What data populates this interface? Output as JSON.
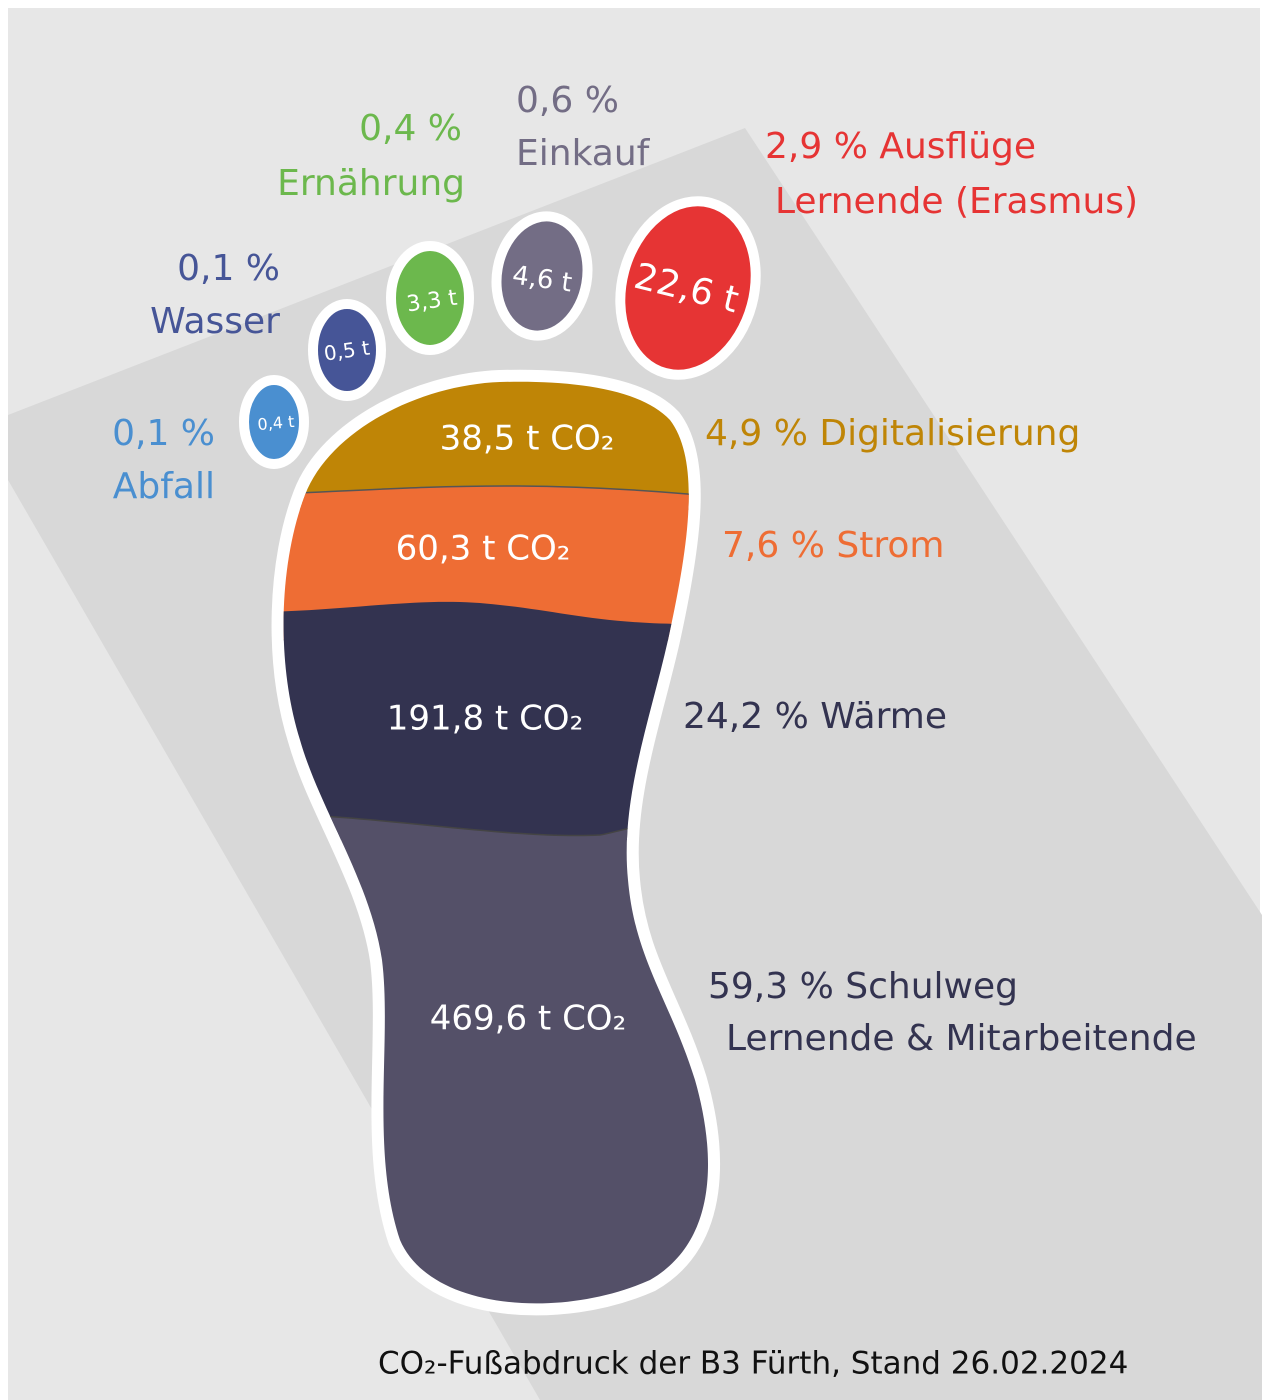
{
  "items": [
    {
      "amount": "0,4 t",
      "share": "0,1 %",
      "label": [
        "Abfall"
      ]
    },
    {
      "amount": "0,5 t",
      "share": "0,1 %",
      "label": [
        "Wasser"
      ]
    },
    {
      "amount": "3,3 t",
      "share": "0,4 %",
      "label": [
        "Ernährung"
      ]
    },
    {
      "amount": "4,6 t",
      "share": "0,6 %",
      "label": [
        "Einkauf"
      ]
    },
    {
      "amount": "22,6 t",
      "share": "2,9 %",
      "label": [
        "Ausflüge",
        "Lernende (Erasmus)"
      ]
    },
    {
      "amount": "38,5 t CO₂",
      "share": "4,9 %",
      "label": [
        "Digitalisierung"
      ]
    },
    {
      "amount": "60,3 t CO₂",
      "share": "7,6 %",
      "label": [
        "Strom"
      ]
    },
    {
      "amount": "191,8 t CO₂",
      "share": "24,2 %",
      "label": [
        "Wärme"
      ]
    },
    {
      "amount": "469,6 t CO₂",
      "share": "59,3 %",
      "label": [
        "Schulweg",
        "Lernende & Mitarbeitende"
      ]
    }
  ],
  "caption": "CO₂-Fußabdruck der B3 Fürth, Stand 26.02.2024"
}
